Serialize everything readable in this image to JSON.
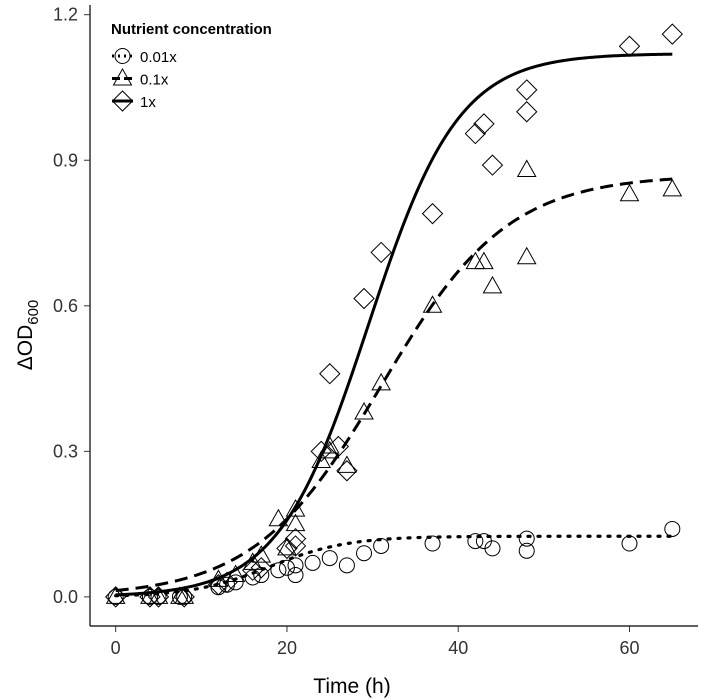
{
  "chart_data": {
    "type": "scatter",
    "title": "",
    "xlabel": "Time (h)",
    "ylabel_main": "ΔOD",
    "ylabel_sub": "600",
    "xlim": [
      -3,
      68
    ],
    "ylim": [
      -0.06,
      1.22
    ],
    "x_ticks": [
      0,
      20,
      40,
      60
    ],
    "x_tick_labels": [
      "0",
      "20",
      "40",
      "60"
    ],
    "y_ticks": [
      0,
      0.3,
      0.6,
      0.9,
      1.2
    ],
    "y_tick_labels": [
      "0.0",
      "0.3",
      "0.6",
      "0.9",
      "1.2"
    ],
    "grid": false,
    "legend": {
      "title": "Nutrient concentration",
      "position": "top-left",
      "entries": [
        {
          "label": "0.01x",
          "marker": "circle",
          "line": "dotted"
        },
        {
          "label": "0.1x",
          "marker": "triangle",
          "line": "dashed"
        },
        {
          "label": "1x",
          "marker": "diamond",
          "line": "solid"
        }
      ]
    },
    "series": [
      {
        "name": "0.01x",
        "marker": "circle",
        "line": "dotted",
        "points": [
          [
            0,
            0.0
          ],
          [
            4,
            0.0
          ],
          [
            5,
            0.0
          ],
          [
            7.5,
            0.0
          ],
          [
            8,
            0.0
          ],
          [
            12,
            0.02
          ],
          [
            13,
            0.025
          ],
          [
            14,
            0.03
          ],
          [
            16,
            0.04
          ],
          [
            17,
            0.045
          ],
          [
            19,
            0.055
          ],
          [
            20,
            0.06
          ],
          [
            21,
            0.045
          ],
          [
            21,
            0.065
          ],
          [
            23,
            0.07
          ],
          [
            25,
            0.08
          ],
          [
            27,
            0.065
          ],
          [
            29,
            0.09
          ],
          [
            31,
            0.105
          ],
          [
            37,
            0.11
          ],
          [
            42,
            0.115
          ],
          [
            43,
            0.115
          ],
          [
            44,
            0.1
          ],
          [
            48,
            0.12
          ],
          [
            48,
            0.095
          ],
          [
            60,
            0.11
          ],
          [
            65,
            0.14
          ]
        ],
        "fit": {
          "model": "logistic",
          "asymptote": 0.125,
          "rate": 0.22,
          "midpoint": 18
        }
      },
      {
        "name": "0.1x",
        "marker": "triangle",
        "line": "dashed",
        "points": [
          [
            0,
            0.0
          ],
          [
            4,
            0.0
          ],
          [
            5,
            0.0
          ],
          [
            7.5,
            0.0
          ],
          [
            8,
            0.0
          ],
          [
            12,
            0.035
          ],
          [
            14,
            0.045
          ],
          [
            16,
            0.07
          ],
          [
            17,
            0.085
          ],
          [
            19,
            0.16
          ],
          [
            20,
            0.1
          ],
          [
            21,
            0.18
          ],
          [
            21,
            0.15
          ],
          [
            24,
            0.28
          ],
          [
            25,
            0.3
          ],
          [
            25,
            0.31
          ],
          [
            27,
            0.27
          ],
          [
            29,
            0.38
          ],
          [
            31,
            0.44
          ],
          [
            37,
            0.6
          ],
          [
            42,
            0.69
          ],
          [
            43,
            0.69
          ],
          [
            44,
            0.64
          ],
          [
            48,
            0.88
          ],
          [
            48,
            0.7
          ],
          [
            60,
            0.83
          ],
          [
            65,
            0.84
          ]
        ],
        "fit": {
          "model": "logistic",
          "asymptote": 0.87,
          "rate": 0.135,
          "midpoint": 31
        }
      },
      {
        "name": "1x",
        "marker": "diamond",
        "line": "solid",
        "points": [
          [
            0,
            0.0
          ],
          [
            4,
            0.0
          ],
          [
            5,
            0.0
          ],
          [
            8,
            0.0
          ],
          [
            12,
            0.025
          ],
          [
            13,
            0.03
          ],
          [
            16,
            0.055
          ],
          [
            17,
            0.06
          ],
          [
            20,
            0.1
          ],
          [
            21,
            0.12
          ],
          [
            21,
            0.105
          ],
          [
            24,
            0.3
          ],
          [
            25,
            0.46
          ],
          [
            26,
            0.31
          ],
          [
            27,
            0.26
          ],
          [
            29,
            0.615
          ],
          [
            31,
            0.71
          ],
          [
            37,
            0.79
          ],
          [
            42,
            0.955
          ],
          [
            43,
            0.975
          ],
          [
            44,
            0.89
          ],
          [
            48,
            1.045
          ],
          [
            48,
            1.0
          ],
          [
            60,
            1.135
          ],
          [
            65,
            1.16
          ]
        ],
        "fit": {
          "model": "logistic",
          "asymptote": 1.12,
          "rate": 0.19,
          "midpoint": 29.5
        }
      }
    ]
  }
}
